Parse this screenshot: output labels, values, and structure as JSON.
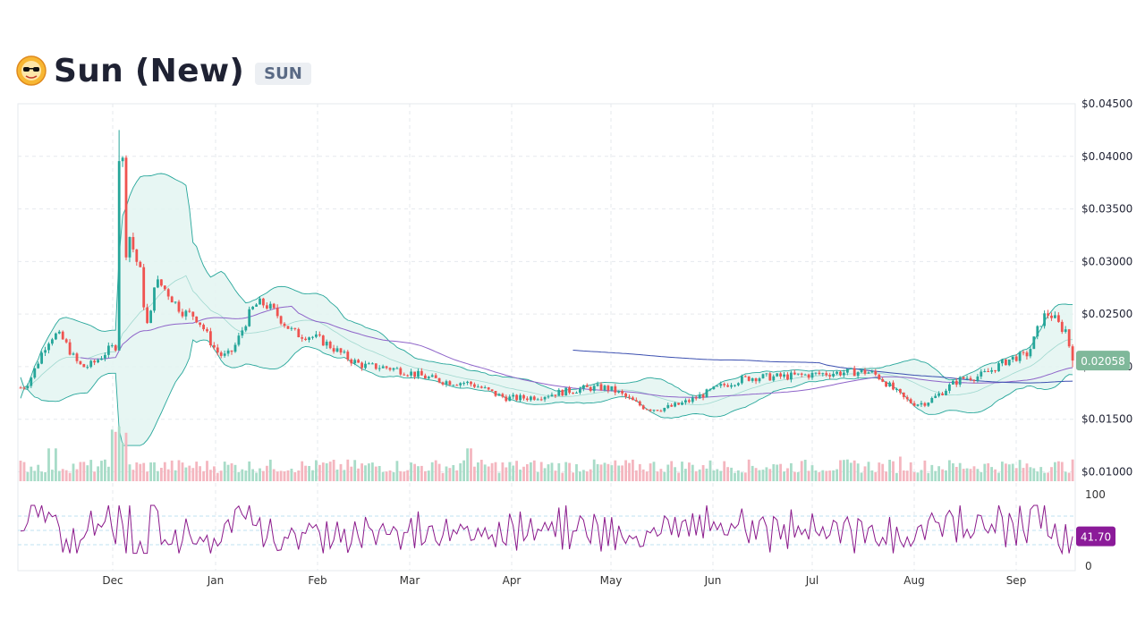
{
  "header": {
    "title": "Sun (New)",
    "symbol": "SUN",
    "logo_icon": "sun-logo-icon"
  },
  "chart_data": {
    "type": "candlestick",
    "title": "Sun (New)",
    "xlabel": "",
    "ylabel": "",
    "x_ticks": [
      "Dec",
      "Jan",
      "Feb",
      "Mar",
      "Apr",
      "May",
      "Jun",
      "Jul",
      "Aug",
      "Sep"
    ],
    "price_axis": {
      "ticks": [
        "$0.04500",
        "$0.04000",
        "$0.03500",
        "$0.03000",
        "$0.02500",
        "$0.02000",
        "$0.01500",
        "$0.01000"
      ],
      "ylim": [
        0.0095,
        0.045
      ],
      "grid": true
    },
    "current_price_label": "0.02058",
    "rsi": {
      "ticks": [
        "100",
        "0"
      ],
      "ylim": [
        0,
        100
      ],
      "reference_levels": [
        70,
        50,
        30
      ],
      "current_label": "41.70"
    },
    "price_keypoints": [
      {
        "month": "Nov",
        "price": 0.018
      },
      {
        "month": "Nov",
        "price": 0.023
      },
      {
        "month": "Dec",
        "price": 0.02
      },
      {
        "month": "Dec",
        "price": 0.022
      },
      {
        "month": "Dec",
        "price": 0.041
      },
      {
        "month": "Dec",
        "price": 0.028
      },
      {
        "month": "Dec",
        "price": 0.025
      },
      {
        "month": "Jan",
        "price": 0.021
      },
      {
        "month": "Jan",
        "price": 0.026
      },
      {
        "month": "Jan",
        "price": 0.023
      },
      {
        "month": "Feb",
        "price": 0.02
      },
      {
        "month": "Feb",
        "price": 0.0185
      },
      {
        "month": "Mar",
        "price": 0.017
      },
      {
        "month": "Mar",
        "price": 0.018
      },
      {
        "month": "Apr",
        "price": 0.016
      },
      {
        "month": "May",
        "price": 0.019
      },
      {
        "month": "Jun",
        "price": 0.0195
      },
      {
        "month": "Jun",
        "price": 0.0165
      },
      {
        "month": "Jul",
        "price": 0.019
      },
      {
        "month": "Aug",
        "price": 0.021
      },
      {
        "month": "Aug",
        "price": 0.025
      },
      {
        "month": "Sep",
        "price": 0.0235
      },
      {
        "month": "Sep",
        "price": 0.0206
      }
    ],
    "colors": {
      "up": "#26a69a",
      "down": "#ef5350",
      "volume_up": "#a8dcc8",
      "volume_down": "#f4b6bf",
      "band_line": "#26a69a",
      "band_fill": "#e3f4f1",
      "ma_purple": "#8e64c9",
      "ma_blue": "#3b4fb0",
      "rsi_line": "#8b1a8b",
      "rsi_label_bg": "#8b1a99",
      "price_label_bg": "#7fb89a",
      "grid": "#e6e9ee"
    }
  }
}
